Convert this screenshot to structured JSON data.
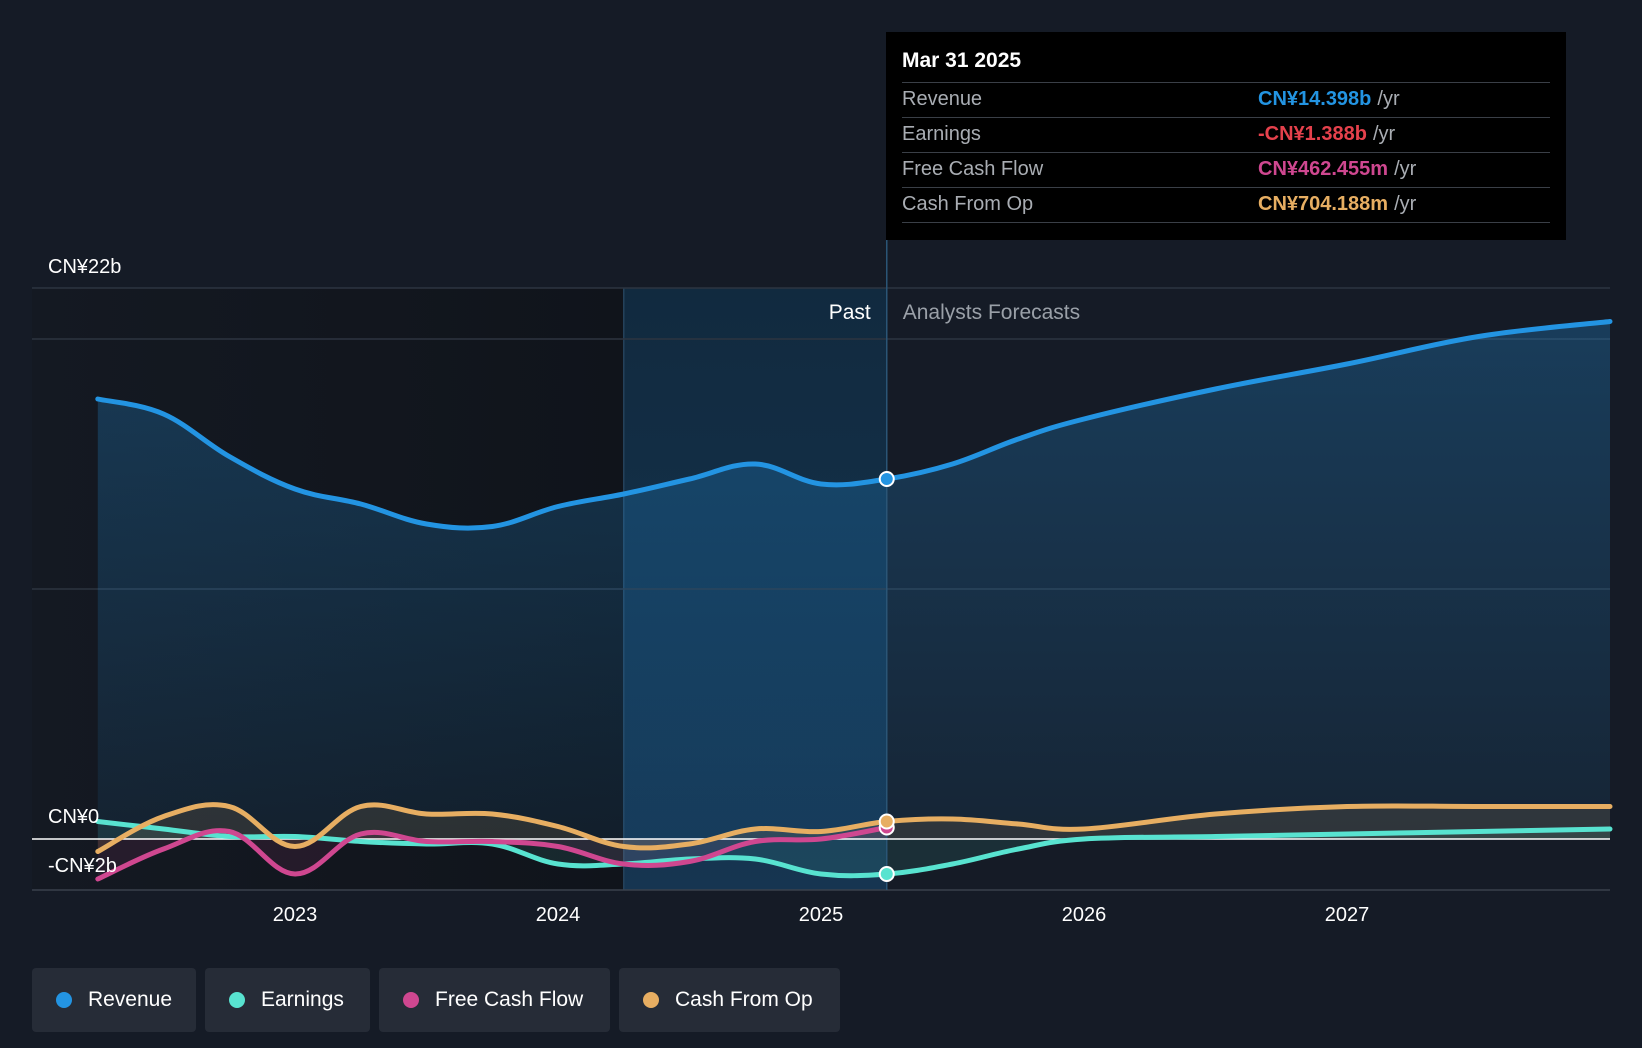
{
  "colors": {
    "revenue": "#2394e2",
    "earnings": "#58e3d0",
    "free_cash_flow": "#cf4790",
    "cash_from_op": "#e7ae62",
    "negative": "#e5414c"
  },
  "tooltip": {
    "date": "Mar 31 2025",
    "rows": [
      {
        "label": "Revenue",
        "value": "CN¥14.398b",
        "unit": "/yr"
      },
      {
        "label": "Earnings",
        "value": "-CN¥1.388b",
        "unit": "/yr"
      },
      {
        "label": "Free Cash Flow",
        "value": "CN¥462.455m",
        "unit": "/yr"
      },
      {
        "label": "Cash From Op",
        "value": "CN¥704.188m",
        "unit": "/yr"
      }
    ]
  },
  "legend": [
    {
      "label": "Revenue",
      "icon": "revenue-dot-icon"
    },
    {
      "label": "Earnings",
      "icon": "earnings-dot-icon"
    },
    {
      "label": "Free Cash Flow",
      "icon": "free-cash-flow-dot-icon"
    },
    {
      "label": "Cash From Op",
      "icon": "cash-from-op-dot-icon"
    }
  ],
  "chart_data": {
    "type": "line",
    "y_tick_labels": [
      "CN¥22b",
      "CN¥0",
      "-CN¥2b"
    ],
    "x_tick_labels": [
      "2023",
      "2024",
      "2025",
      "2026",
      "2027"
    ],
    "region_labels": {
      "past": "Past",
      "forecast": "Analysts Forecasts"
    },
    "ylim": [
      -2,
      22
    ],
    "xlim": [
      2022.0,
      2028.0
    ],
    "divider_x": 2025.25,
    "highlight_start_x": 2024.25,
    "grid": true,
    "series": [
      {
        "name": "Revenue",
        "x": [
          2022.25,
          2022.5,
          2022.75,
          2023.0,
          2023.25,
          2023.5,
          2023.75,
          2024.0,
          2024.25,
          2024.5,
          2024.75,
          2025.0,
          2025.25,
          2025.5,
          2025.75,
          2026.0,
          2026.5,
          2027.0,
          2027.5,
          2028.0
        ],
        "y": [
          17.6,
          17.0,
          15.3,
          14.0,
          13.4,
          12.6,
          12.5,
          13.3,
          13.8,
          14.4,
          15.0,
          14.2,
          14.4,
          15.0,
          16.0,
          16.8,
          18.0,
          19.0,
          20.1,
          20.7
        ]
      },
      {
        "name": "Earnings",
        "x": [
          2022.25,
          2022.5,
          2022.75,
          2023.0,
          2023.25,
          2023.5,
          2023.75,
          2024.0,
          2024.25,
          2024.5,
          2024.75,
          2025.0,
          2025.25,
          2025.5,
          2025.75,
          2026.0,
          2026.5,
          2027.0,
          2027.5,
          2028.0
        ],
        "y": [
          0.7,
          0.4,
          0.1,
          0.1,
          -0.1,
          -0.2,
          -0.2,
          -1.0,
          -1.0,
          -0.8,
          -0.8,
          -1.4,
          -1.4,
          -1.0,
          -0.4,
          0.0,
          0.1,
          0.2,
          0.3,
          0.4
        ]
      },
      {
        "name": "Free Cash Flow",
        "x": [
          2022.25,
          2022.5,
          2022.75,
          2023.0,
          2023.25,
          2023.5,
          2023.75,
          2024.0,
          2024.25,
          2024.5,
          2024.75,
          2025.0,
          2025.25
        ],
        "y": [
          -1.6,
          -0.4,
          0.3,
          -1.4,
          0.2,
          -0.1,
          -0.1,
          -0.3,
          -1.0,
          -0.9,
          -0.1,
          0.0,
          0.46
        ]
      },
      {
        "name": "Cash From Op",
        "x": [
          2022.25,
          2022.5,
          2022.75,
          2023.0,
          2023.25,
          2023.5,
          2023.75,
          2024.0,
          2024.25,
          2024.5,
          2024.75,
          2025.0,
          2025.25,
          2025.5,
          2025.75,
          2026.0,
          2026.5,
          2027.0,
          2027.5,
          2028.0
        ],
        "y": [
          -0.5,
          0.9,
          1.3,
          -0.3,
          1.3,
          1.0,
          1.0,
          0.5,
          -0.3,
          -0.2,
          0.4,
          0.3,
          0.7,
          0.8,
          0.6,
          0.4,
          1.0,
          1.3,
          1.3,
          1.3
        ]
      }
    ]
  }
}
